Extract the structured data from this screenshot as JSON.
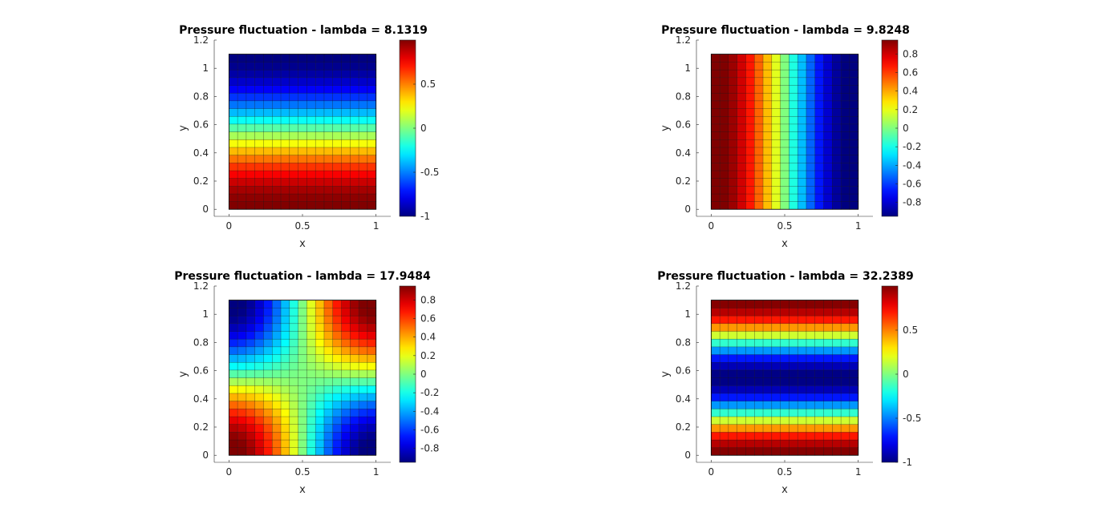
{
  "chart_data": [
    {
      "type": "heatmap",
      "title": "Pressure fluctuation - lambda = 8.1319",
      "xlabel": "x",
      "ylabel": "y",
      "xlim": [
        -0.1,
        1.1
      ],
      "ylim": [
        -0.05,
        1.2
      ],
      "xticks": [
        "0",
        "0.5",
        "1"
      ],
      "yticks": [
        "0",
        "0.2",
        "0.4",
        "0.6",
        "0.8",
        "1",
        "1.2"
      ],
      "field_domain": {
        "x": [
          0,
          1
        ],
        "y": [
          0,
          1.1
        ]
      },
      "field": "cos(pi*y/1.1)",
      "colormap": "jet",
      "clim": [
        -1,
        1
      ],
      "colorbar_ticks": [
        "-1",
        "-0.5",
        "0",
        "0.5"
      ],
      "grid": false
    },
    {
      "type": "heatmap",
      "title": "Pressure fluctuation - lambda = 9.8248",
      "xlabel": "x",
      "ylabel": "y",
      "xlim": [
        -0.1,
        1.1
      ],
      "ylim": [
        -0.05,
        1.2
      ],
      "xticks": [
        "0",
        "0.5",
        "1"
      ],
      "yticks": [
        "0",
        "0.2",
        "0.4",
        "0.6",
        "0.8",
        "1",
        "1.2"
      ],
      "field_domain": {
        "x": [
          0,
          1
        ],
        "y": [
          0,
          1.1
        ]
      },
      "field": "cos(pi*x)",
      "colormap": "jet",
      "clim": [
        -0.95,
        0.95
      ],
      "colorbar_ticks": [
        "-0.8",
        "-0.6",
        "-0.4",
        "-0.2",
        "0",
        "0.2",
        "0.4",
        "0.6",
        "0.8"
      ],
      "grid": false
    },
    {
      "type": "heatmap",
      "title": "Pressure fluctuation - lambda = 17.9484",
      "xlabel": "x",
      "ylabel": "y",
      "xlim": [
        -0.1,
        1.1
      ],
      "ylim": [
        -0.05,
        1.2
      ],
      "xticks": [
        "0",
        "0.5",
        "1"
      ],
      "yticks": [
        "0",
        "0.2",
        "0.4",
        "0.6",
        "0.8",
        "1",
        "1.2"
      ],
      "field_domain": {
        "x": [
          0,
          1
        ],
        "y": [
          0,
          1.1
        ]
      },
      "field": "cos(pi*x)*cos(pi*y/1.1)",
      "colormap": "jet",
      "clim": [
        -0.95,
        0.95
      ],
      "colorbar_ticks": [
        "-0.8",
        "-0.6",
        "-0.4",
        "-0.2",
        "0",
        "0.2",
        "0.4",
        "0.6",
        "0.8"
      ],
      "grid": false
    },
    {
      "type": "heatmap",
      "title": "Pressure fluctuation - lambda = 32.2389",
      "xlabel": "x",
      "ylabel": "y",
      "xlim": [
        -0.1,
        1.1
      ],
      "ylim": [
        -0.05,
        1.2
      ],
      "xticks": [
        "0",
        "0.5",
        "1"
      ],
      "yticks": [
        "0",
        "0.2",
        "0.4",
        "0.6",
        "0.8",
        "1",
        "1.2"
      ],
      "field_domain": {
        "x": [
          0,
          1
        ],
        "y": [
          0,
          1.1
        ]
      },
      "field": "cos(2*pi*y/1.1)",
      "colormap": "jet",
      "clim": [
        -1,
        1
      ],
      "colorbar_ticks": [
        "-1",
        "-0.5",
        "0",
        "0.5"
      ],
      "grid": false
    }
  ]
}
